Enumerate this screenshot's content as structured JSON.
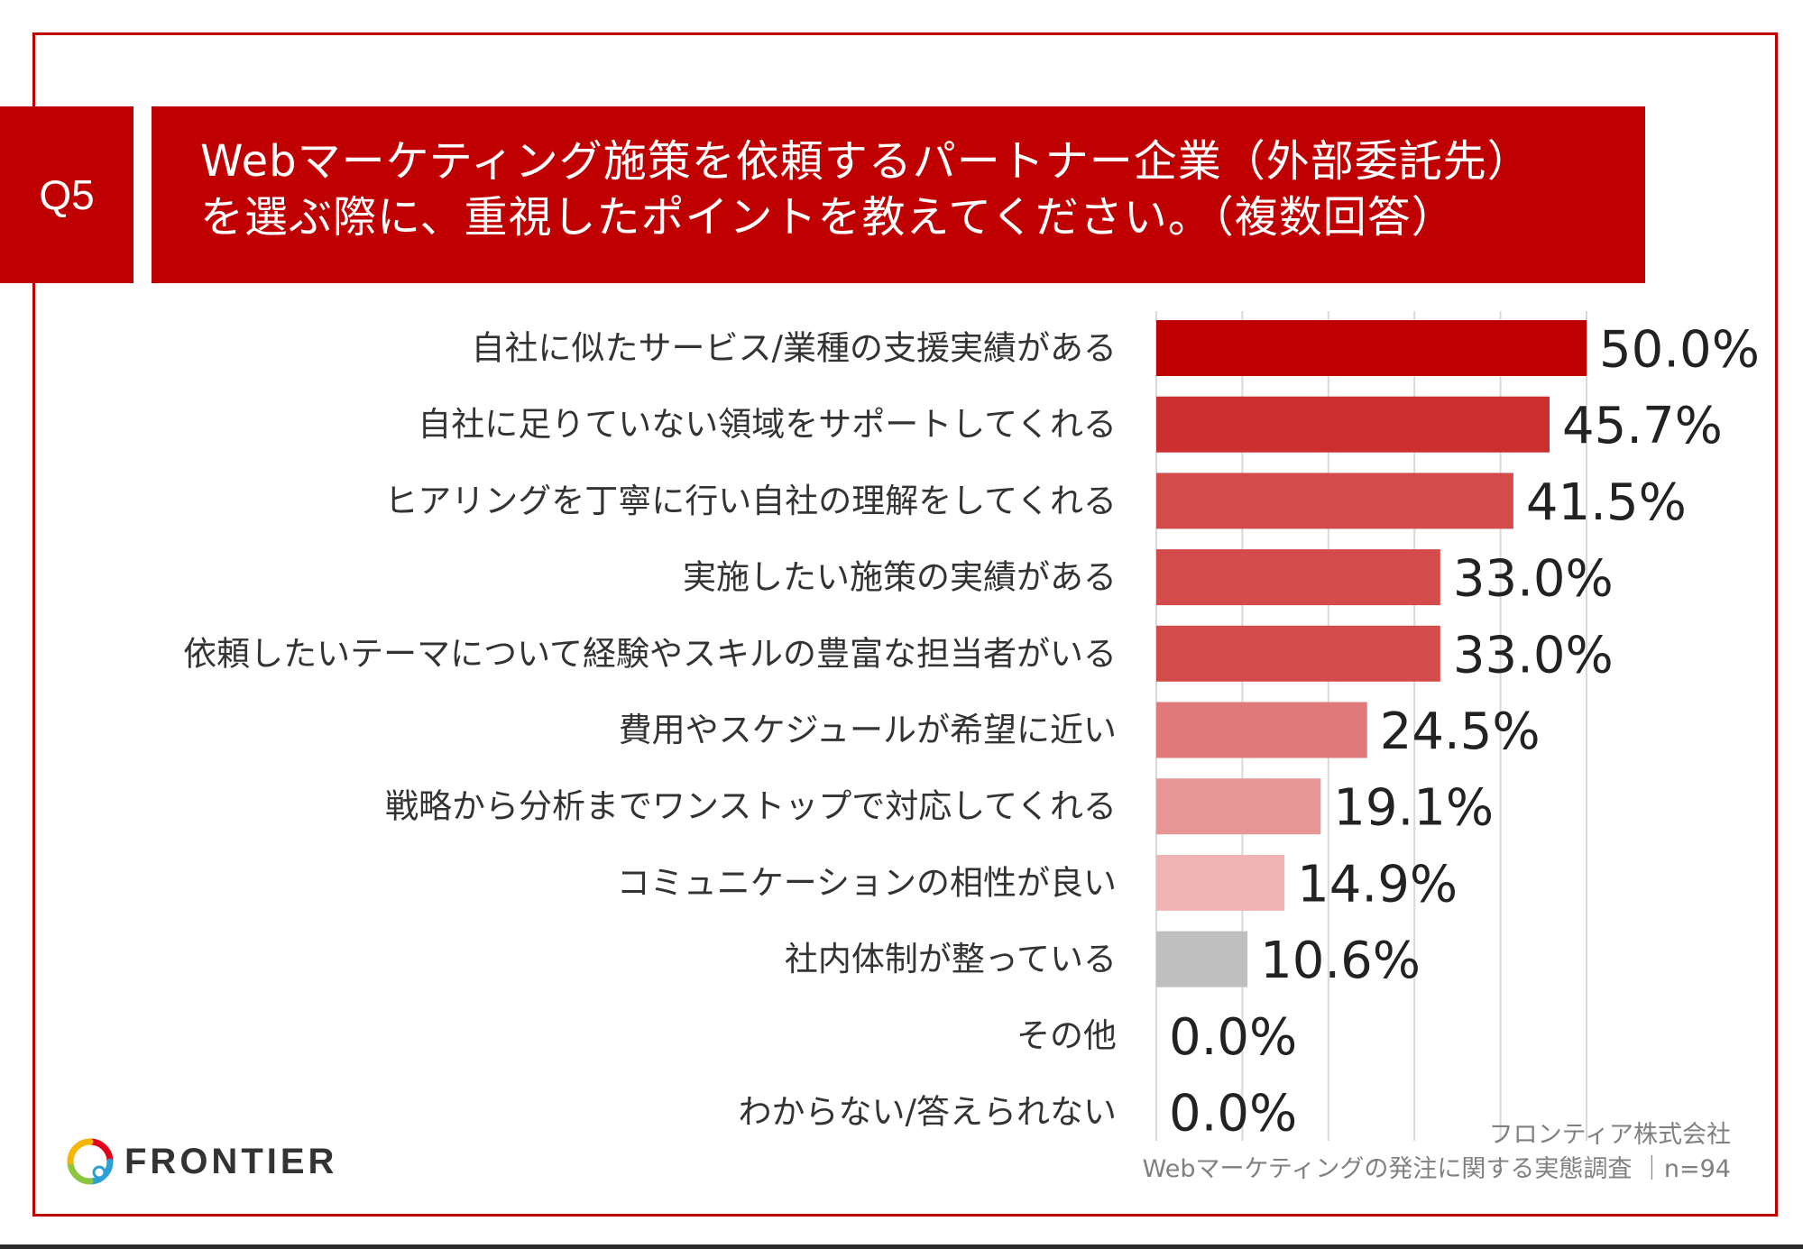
{
  "header": {
    "badge": "Q5",
    "title_line1": "Webマーケティング施策を依頼するパートナー企業（外部委託先）",
    "title_line2": "を選ぶ際に、重視したポイントを教えてください。（複数回答）"
  },
  "chart_data": {
    "type": "bar",
    "orientation": "horizontal",
    "categories": [
      "自社に似たサービス/業種の支援実績がある",
      "自社に足りていない領域をサポートしてくれる",
      "ヒアリングを丁寧に行い自社の理解をしてくれる",
      "実施したい施策の実績がある",
      "依頼したいテーマについて経験やスキルの豊富な担当者がいる",
      "費用やスケジュールが希望に近い",
      "戦略から分析までワンストップで対応してくれる",
      "コミュニケーションの相性が良い",
      "社内体制が整っている",
      "その他",
      "わからない/答えられない"
    ],
    "values": [
      50.0,
      45.7,
      41.5,
      33.0,
      33.0,
      24.5,
      19.1,
      14.9,
      10.6,
      0.0,
      0.0
    ],
    "value_labels": [
      "50.0%",
      "45.7%",
      "41.5%",
      "33.0%",
      "33.0%",
      "24.5%",
      "19.1%",
      "14.9%",
      "10.6%",
      "0.0%",
      "0.0%"
    ],
    "bar_colors": [
      "#c00000",
      "#cc2f2f",
      "#d44b4b",
      "#d44b4b",
      "#d44b4b",
      "#e07a7a",
      "#e89696",
      "#efb5b5",
      "#bfbfbf",
      "#bfbfbf",
      "#bfbfbf"
    ],
    "xlim": [
      0,
      50
    ],
    "grid": true,
    "unit": "%"
  },
  "footer": {
    "logo_text": "FRONTIER",
    "source_line1": "フロンティア株式会社",
    "source_line2": "Webマーケティングの発注に関する実態調査 ｜n=94"
  }
}
